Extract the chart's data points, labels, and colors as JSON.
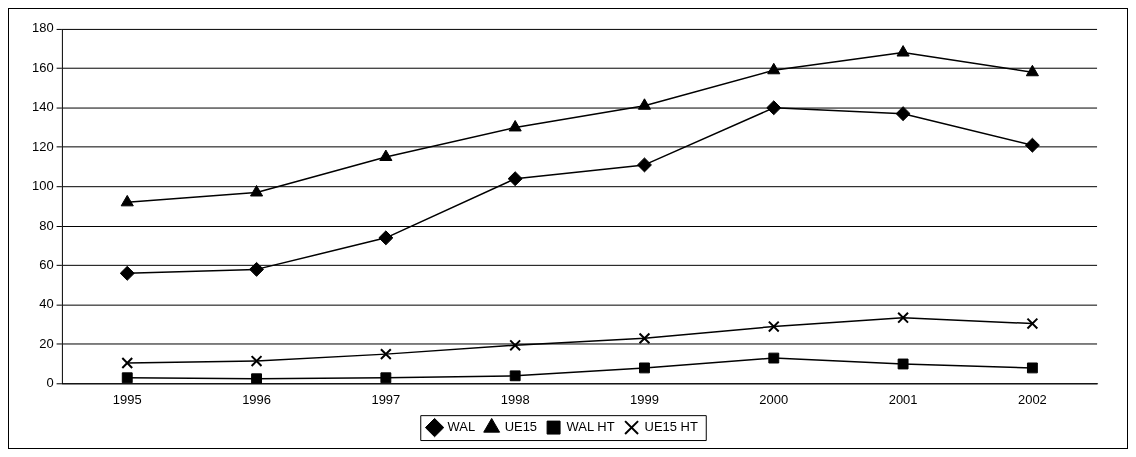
{
  "chart_data": {
    "type": "line",
    "categories": [
      "1995",
      "1996",
      "1997",
      "1998",
      "1999",
      "2000",
      "2001",
      "2002"
    ],
    "series": [
      {
        "name": "WAL",
        "color": "#000000",
        "marker": "diamond",
        "values": [
          56,
          58,
          74,
          104,
          111,
          140,
          137,
          121
        ]
      },
      {
        "name": "UE15",
        "color": "#000000",
        "marker": "triangle",
        "values": [
          92,
          97,
          115,
          130,
          141,
          159,
          168,
          158
        ]
      },
      {
        "name": "WAL HT",
        "color": "#000000",
        "marker": "square",
        "values": [
          3,
          2.5,
          3,
          4,
          8,
          13,
          10,
          8
        ]
      },
      {
        "name": "UE15 HT",
        "color": "#000000",
        "marker": "cross",
        "values": [
          10.5,
          11.5,
          15,
          19.5,
          23,
          29,
          33.5,
          30.5
        ]
      }
    ],
    "ylim": [
      0,
      180
    ],
    "yticks": [
      0,
      20,
      40,
      60,
      80,
      100,
      120,
      140,
      160,
      180
    ],
    "grid": "y",
    "legend": "bottom",
    "line_style": "solid"
  }
}
